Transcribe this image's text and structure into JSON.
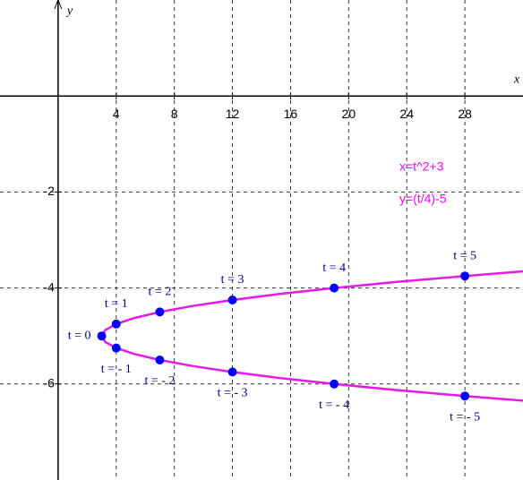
{
  "chart_data": {
    "type": "line",
    "xlabel": "x",
    "ylabel": "y",
    "annotations": [
      "x=t^2+3",
      "y=(t/4)-5"
    ],
    "annotation_color": "#ff00ff",
    "xlim": [
      -4,
      32
    ],
    "ylim": [
      -8,
      2
    ],
    "xticks": [
      4,
      8,
      12,
      16,
      20,
      24,
      28
    ],
    "yticks": [
      -6,
      -4,
      -2
    ],
    "grid": true,
    "series": [
      {
        "color": "#e619e6",
        "x": [
          32.16,
          28,
          23.25,
          19,
          15.25,
          12,
          9.25,
          7,
          5.25,
          4,
          3.25,
          3,
          3.25,
          4,
          5.25,
          7,
          9.25,
          12,
          15.25,
          19,
          23.25,
          28,
          32.16
        ],
        "values": [
          -6.35,
          -6.25,
          -6.125,
          -6,
          -5.875,
          -5.75,
          -5.625,
          -5.5,
          -5.375,
          -5.25,
          -5.125,
          -5,
          -4.875,
          -4.75,
          -4.625,
          -4.5,
          -4.375,
          -4.25,
          -4.125,
          -4,
          -3.875,
          -3.75,
          -3.65
        ]
      },
      {
        "color": "#0000ff",
        "x": [
          3,
          4,
          7,
          12,
          19,
          28,
          4,
          7,
          12,
          19,
          28
        ],
        "values": [
          -5,
          -4.75,
          -4.5,
          -4.25,
          -4,
          -3.75,
          -5.25,
          -5.5,
          -5.75,
          -6,
          -6.25
        ],
        "labels": [
          "t = 0",
          "t = 1",
          "t = 2",
          "t = 3",
          "t = 4",
          "t = 5",
          "t = - 1",
          "t = - 2",
          "t = - 3",
          "t = - 4",
          "t = - 5"
        ]
      }
    ]
  }
}
